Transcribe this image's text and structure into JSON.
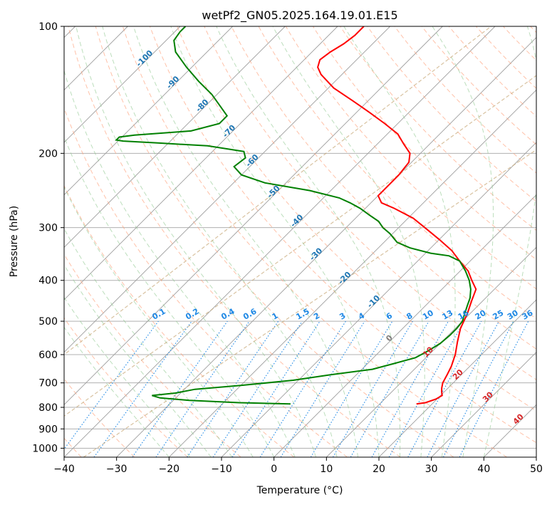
{
  "chart_data": {
    "type": "line",
    "subtype": "skew-t log-p diagram",
    "title": "wetPf2_GN05.2025.164.19.01.E15",
    "xlabel": "Temperature (°C)",
    "ylabel": "Pressure (hPa)",
    "xlim": [
      -40,
      50
    ],
    "ylim": [
      1050,
      100
    ],
    "y_scale": "log",
    "grid": true,
    "x_ticks": [
      -40,
      -30,
      -20,
      -10,
      0,
      10,
      20,
      30,
      40,
      50
    ],
    "x_tick_labels": [
      "−40",
      "−30",
      "−20",
      "−10",
      "0",
      "10",
      "20",
      "30",
      "40",
      "50"
    ],
    "y_ticks": [
      1000,
      900,
      800,
      700,
      600,
      500,
      400,
      300,
      200,
      100
    ],
    "y_tick_labels": [
      "1000",
      "900",
      "800",
      "700",
      "600",
      "500",
      "400",
      "300",
      "200",
      "100"
    ],
    "series": [
      {
        "role": "temperature",
        "color": "#ff0000",
        "points": [
          [
            785,
            17.0
          ],
          [
            780,
            18.5
          ],
          [
            765,
            19.8
          ],
          [
            750,
            20.3
          ],
          [
            735,
            19.5
          ],
          [
            720,
            18.8
          ],
          [
            700,
            18.0
          ],
          [
            670,
            17.3
          ],
          [
            640,
            16.5
          ],
          [
            600,
            15.0
          ],
          [
            560,
            13.0
          ],
          [
            520,
            11.0
          ],
          [
            480,
            9.5
          ],
          [
            450,
            8.0
          ],
          [
            420,
            6.5
          ],
          [
            400,
            4.0
          ],
          [
            380,
            1.5
          ],
          [
            360,
            -2.0
          ],
          [
            340,
            -5.5
          ],
          [
            320,
            -10.0
          ],
          [
            300,
            -15.0
          ],
          [
            285,
            -19.0
          ],
          [
            270,
            -24.5
          ],
          [
            262,
            -28.0
          ],
          [
            252,
            -30.0
          ],
          [
            240,
            -30.0
          ],
          [
            225,
            -30.0
          ],
          [
            210,
            -30.5
          ],
          [
            200,
            -32.0
          ],
          [
            190,
            -35.0
          ],
          [
            180,
            -38.0
          ],
          [
            170,
            -42.5
          ],
          [
            160,
            -47.5
          ],
          [
            150,
            -53.0
          ],
          [
            140,
            -59.0
          ],
          [
            130,
            -64.0
          ],
          [
            125,
            -66.0
          ],
          [
            120,
            -67.0
          ],
          [
            115,
            -66.5
          ],
          [
            110,
            -65.5
          ],
          [
            105,
            -65.0
          ],
          [
            100,
            -65.0
          ]
        ]
      },
      {
        "role": "dewpoint",
        "color": "#008000",
        "points": [
          [
            785,
            -7.0
          ],
          [
            780,
            -17.0
          ],
          [
            770,
            -27.0
          ],
          [
            760,
            -33.0
          ],
          [
            750,
            -35.0
          ],
          [
            740,
            -31.0
          ],
          [
            725,
            -28.0
          ],
          [
            710,
            -20.0
          ],
          [
            690,
            -11.0
          ],
          [
            670,
            -5.0
          ],
          [
            650,
            2.0
          ],
          [
            630,
            5.0
          ],
          [
            610,
            8.0
          ],
          [
            590,
            9.0
          ],
          [
            565,
            10.0
          ],
          [
            540,
            10.3
          ],
          [
            520,
            10.3
          ],
          [
            500,
            10.0
          ],
          [
            480,
            9.0
          ],
          [
            460,
            8.0
          ],
          [
            440,
            7.0
          ],
          [
            420,
            5.5
          ],
          [
            400,
            3.5
          ],
          [
            380,
            1.0
          ],
          [
            360,
            -2.0
          ],
          [
            350,
            -5.0
          ],
          [
            345,
            -9.0
          ],
          [
            335,
            -14.0
          ],
          [
            325,
            -17.5
          ],
          [
            310,
            -20.5
          ],
          [
            300,
            -23.0
          ],
          [
            290,
            -25.0
          ],
          [
            280,
            -28.0
          ],
          [
            270,
            -31.0
          ],
          [
            262,
            -34.0
          ],
          [
            255,
            -37.0
          ],
          [
            245,
            -44.0
          ],
          [
            235,
            -54.0
          ],
          [
            225,
            -60.0
          ],
          [
            215,
            -63.0
          ],
          [
            205,
            -62.5
          ],
          [
            198,
            -64.0
          ],
          [
            192,
            -72.0
          ],
          [
            189,
            -82.0
          ],
          [
            187,
            -89.0
          ],
          [
            186,
            -90.5
          ],
          [
            183,
            -90.5
          ],
          [
            181,
            -88.0
          ],
          [
            177,
            -78.0
          ],
          [
            170,
            -74.0
          ],
          [
            163,
            -74.0
          ],
          [
            155,
            -77.0
          ],
          [
            145,
            -81.0
          ],
          [
            135,
            -86.0
          ],
          [
            125,
            -91.0
          ],
          [
            115,
            -96.0
          ],
          [
            108,
            -98.5
          ],
          [
            103,
            -99.0
          ],
          [
            100,
            -99.0
          ]
        ]
      }
    ],
    "reference_lines": {
      "dry_adiabats_color": "#ffa07a",
      "moist_adiabats_color": "#90c890",
      "mixing_ratio_color": "#1e88e5",
      "isotherm_color": "#555555",
      "height_contour_color": "#c8a878"
    },
    "isotherm_labels": [
      "-100",
      "-90",
      "-80",
      "-70",
      "-60",
      "-50",
      "-40",
      "-30",
      "-20",
      "-10"
    ],
    "mixing_ratio_labels": [
      "0.1",
      "0.2",
      "0.4",
      "0.6",
      "1",
      "1.5",
      "2",
      "3",
      "4",
      "6",
      "8",
      "10",
      "13",
      "16",
      "20",
      "25",
      "30",
      "36"
    ],
    "mixing_ratio_values": [
      0.1,
      0.2,
      0.4,
      0.6,
      1,
      1.5,
      2,
      3,
      4,
      6,
      8,
      10,
      13,
      16,
      20,
      25,
      30,
      36
    ],
    "wet_bulb_labels": [
      {
        "text": "0",
        "color": "#808080"
      },
      {
        "text": "10",
        "color": "#d62728"
      },
      {
        "text": "20",
        "color": "#d62728"
      },
      {
        "text": "30",
        "color": "#d62728"
      },
      {
        "text": "40",
        "color": "#d62728"
      }
    ]
  }
}
